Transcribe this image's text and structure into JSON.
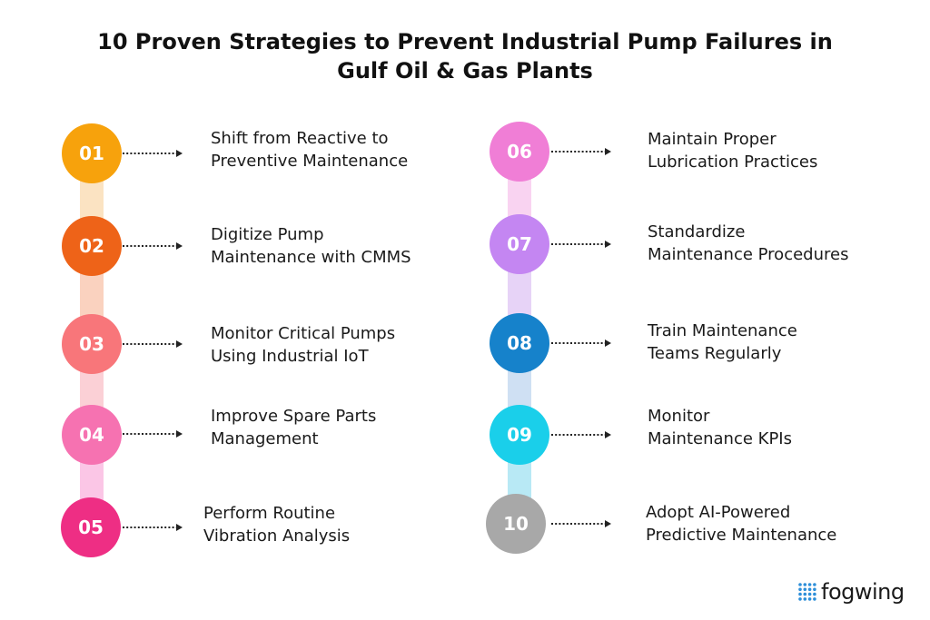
{
  "title": {
    "line1": "10 Proven Strategies to Prevent Industrial Pump Failures in",
    "line2": "Gulf Oil & Gas Plants"
  },
  "strategies": [
    {
      "number": "01",
      "line1": "Shift from Reactive to",
      "line2": "Preventive Maintenance",
      "color": "#F7A20C"
    },
    {
      "number": "02",
      "line1": "Digitize Pump",
      "line2": "Maintenance with CMMS",
      "color": "#EE6318"
    },
    {
      "number": "03",
      "line1": "Monitor Critical Pumps",
      "line2": "Using Industrial IoT",
      "color": "#F8767A"
    },
    {
      "number": "04",
      "line1": "Improve Spare Parts",
      "line2": "Management",
      "color": "#F672B1"
    },
    {
      "number": "05",
      "line1": "Perform Routine",
      "line2": "Vibration Analysis",
      "color": "#EE2E84"
    },
    {
      "number": "06",
      "line1": "Maintain Proper",
      "line2": "Lubrication Practices",
      "color": "#F07ED6"
    },
    {
      "number": "07",
      "line1": "Standardize",
      "line2": "Maintenance Procedures",
      "color": "#C486F2"
    },
    {
      "number": "08",
      "line1": "Train Maintenance",
      "line2": "Teams Regularly",
      "color": "#1682CB"
    },
    {
      "number": "09",
      "line1": "Monitor",
      "line2": "Maintenance KPIs",
      "color": "#1ACFEA"
    },
    {
      "number": "10",
      "line1": "Adopt AI-Powered",
      "line2": "Predictive Maintenance",
      "color": "#A8A8A8"
    }
  ],
  "track_colors": {
    "left": [
      "#FBE3C2",
      "#FAD2BF",
      "#FBD0D6",
      "#FBC6E6"
    ],
    "right": [
      "#F9D3F1",
      "#E7D3F7",
      "#CFE0F3",
      "#B8E9F5"
    ]
  },
  "brand": {
    "name": "fogwing",
    "icon": "dot-grid-icon",
    "dot_color": "#2E8FD9"
  }
}
